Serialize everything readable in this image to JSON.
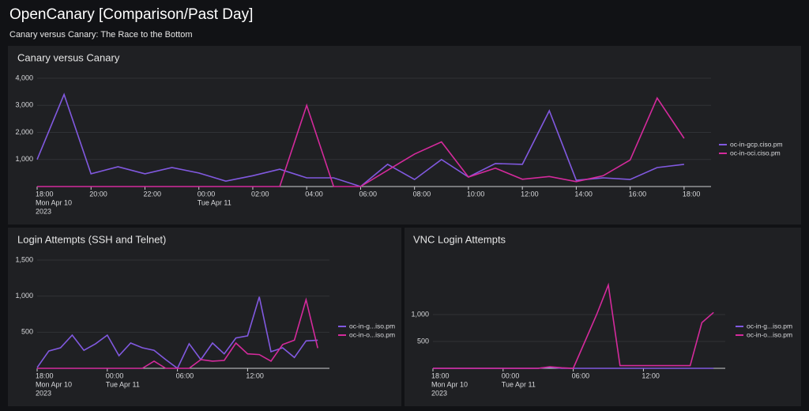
{
  "header": {
    "title": "OpenCanary [Comparison/Past Day]",
    "subtitle": "Canary versus Canary: The Race to the Bottom"
  },
  "chart_data": [
    {
      "type": "line",
      "title": "Canary versus Canary",
      "x": [
        0,
        1,
        2,
        3,
        4,
        5,
        6,
        7,
        8,
        9,
        10,
        11,
        12,
        13,
        14,
        15,
        16,
        17,
        18,
        19,
        20,
        21,
        22,
        23,
        24
      ],
      "series": [
        {
          "name": "oc-in-gcp.ciso.pm",
          "color": "#8159e0",
          "values": [
            1000,
            3400,
            470,
            730,
            470,
            700,
            500,
            200,
            400,
            640,
            320,
            320,
            0,
            820,
            260,
            1000,
            350,
            850,
            820,
            2800,
            230,
            320,
            260,
            700,
            820
          ]
        },
        {
          "name": "oc-in-oci.ciso.pm",
          "color": "#d42a9c",
          "values": [
            0,
            0,
            0,
            0,
            0,
            0,
            0,
            0,
            0,
            0,
            3000,
            0,
            0,
            600,
            1200,
            1650,
            350,
            680,
            270,
            370,
            180,
            400,
            980,
            3270,
            1780
          ]
        }
      ],
      "xlim": [
        0,
        25
      ],
      "ylim": [
        0,
        4000
      ],
      "xticks": [
        {
          "value": 0,
          "label": "18:00",
          "date": "Mon Apr 10",
          "year": "2023"
        },
        {
          "value": 2,
          "label": "20:00"
        },
        {
          "value": 4,
          "label": "22:00"
        },
        {
          "value": 6,
          "label": "00:00",
          "date": "Tue Apr 11"
        },
        {
          "value": 8,
          "label": "02:00"
        },
        {
          "value": 10,
          "label": "04:00"
        },
        {
          "value": 12,
          "label": "06:00"
        },
        {
          "value": 14,
          "label": "08:00"
        },
        {
          "value": 16,
          "label": "10:00"
        },
        {
          "value": 18,
          "label": "12:00"
        },
        {
          "value": 20,
          "label": "14:00"
        },
        {
          "value": 22,
          "label": "16:00"
        },
        {
          "value": 24,
          "label": "18:00"
        }
      ],
      "yticks": [
        {
          "value": 1000,
          "label": "1,000"
        },
        {
          "value": 2000,
          "label": "2,000"
        },
        {
          "value": 3000,
          "label": "3,000"
        },
        {
          "value": 4000,
          "label": "4,000"
        }
      ],
      "grid": true,
      "legend": "right"
    },
    {
      "type": "line",
      "title": "Login Attempts (SSH and Telnet)",
      "x": [
        0,
        1,
        2,
        3,
        4,
        5,
        6,
        7,
        8,
        9,
        10,
        11,
        12,
        13,
        14,
        15,
        16,
        17,
        18,
        19,
        20,
        21,
        22,
        23,
        24
      ],
      "series": [
        {
          "name": "oc-in-g...iso.pm",
          "color": "#8159e0",
          "values": [
            10,
            240,
            285,
            460,
            250,
            340,
            460,
            175,
            350,
            285,
            250,
            120,
            0,
            340,
            120,
            350,
            200,
            420,
            450,
            990,
            230,
            285,
            150,
            380,
            390
          ]
        },
        {
          "name": "oc-in-o...iso.pm",
          "color": "#d42a9c",
          "values": [
            0,
            0,
            0,
            0,
            0,
            0,
            0,
            0,
            0,
            0,
            100,
            0,
            0,
            0,
            120,
            100,
            110,
            350,
            200,
            190,
            100,
            330,
            390,
            950,
            280
          ]
        }
      ],
      "xlim": [
        0,
        25
      ],
      "ylim": [
        0,
        1500
      ],
      "xticks": [
        {
          "value": 0,
          "label": "18:00",
          "date": "Mon Apr 10",
          "year": "2023"
        },
        {
          "value": 6,
          "label": "00:00",
          "date": "Tue Apr 11"
        },
        {
          "value": 12,
          "label": "06:00"
        },
        {
          "value": 18,
          "label": "12:00"
        }
      ],
      "yticks": [
        500,
        {
          "value": 1000,
          "label": "1,000"
        },
        {
          "value": 1500,
          "label": "1,500"
        }
      ],
      "grid": true,
      "legend": "right"
    },
    {
      "type": "line",
      "title": "VNC Login Attempts",
      "x": [
        0,
        1,
        2,
        3,
        4,
        5,
        6,
        7,
        8,
        9,
        10,
        11,
        12,
        13,
        14,
        15,
        16,
        17,
        18,
        19,
        20,
        21,
        22,
        23,
        24
      ],
      "series": [
        {
          "name": "oc-in-g...iso.pm",
          "color": "#8159e0",
          "values": [
            0,
            0,
            0,
            0,
            0,
            0,
            0,
            0,
            0,
            0,
            20,
            0,
            0,
            0,
            0,
            0,
            0,
            0,
            0,
            0,
            0,
            0,
            0,
            0,
            0
          ]
        },
        {
          "name": "oc-in-o...iso.pm",
          "color": "#d42a9c",
          "values": [
            0,
            0,
            0,
            0,
            0,
            0,
            0,
            0,
            0,
            0,
            30,
            10,
            0,
            500,
            1000,
            1550,
            50,
            50,
            50,
            50,
            50,
            50,
            50,
            850,
            1040
          ]
        }
      ],
      "xlim": [
        0,
        25
      ],
      "ylim": [
        0,
        2000
      ],
      "xticks": [
        {
          "value": 0,
          "label": "18:00",
          "date": "Mon Apr 10",
          "year": "2023"
        },
        {
          "value": 6,
          "label": "00:00",
          "date": "Tue Apr 11"
        },
        {
          "value": 12,
          "label": "06:00"
        },
        {
          "value": 18,
          "label": "12:00"
        }
      ],
      "yticks": [
        500,
        {
          "value": 1000,
          "label": "1,000"
        }
      ],
      "grid": true,
      "legend": "right"
    }
  ]
}
